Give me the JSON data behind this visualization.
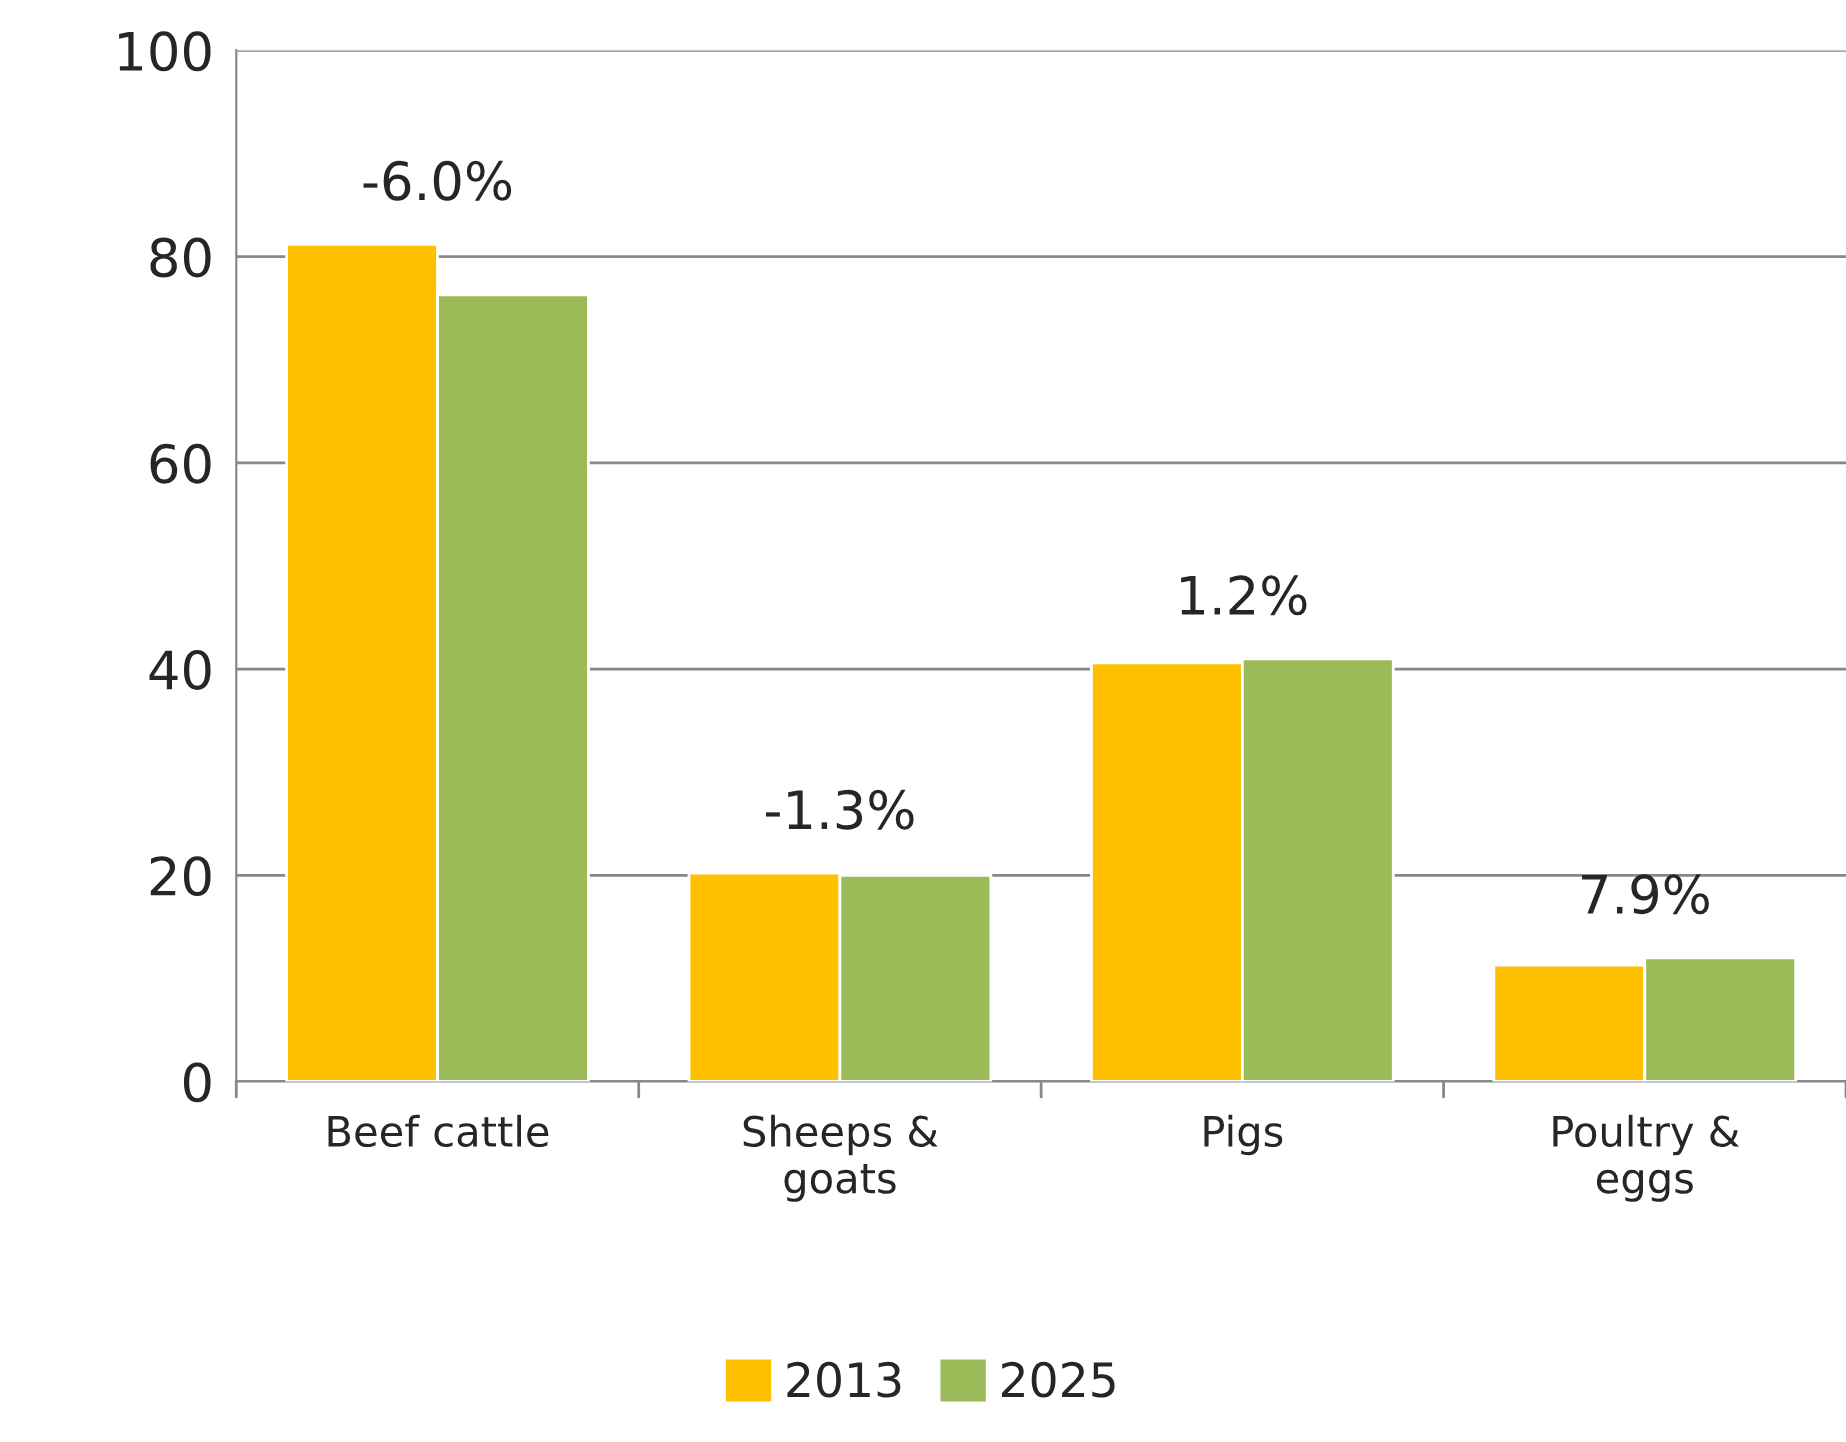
{
  "chart_data": {
    "type": "bar",
    "categories": [
      "Beef cattle",
      "Sheeps &\ngoats",
      "Pigs",
      "Poultry &\neggs"
    ],
    "series": [
      {
        "name": "2013",
        "color": "#ffc000",
        "values": [
          81.2,
          20.2,
          40.6,
          11.3
        ]
      },
      {
        "name": "2025",
        "color": "#9bbb59",
        "values": [
          76.3,
          20.0,
          41.0,
          12.0
        ]
      }
    ],
    "annotations": [
      {
        "text": "-6.0%",
        "x": "Beef cattle",
        "y": 81.2
      },
      {
        "text": "-1.3%",
        "x": "Sheeps &\ngoats",
        "y": 20.2
      },
      {
        "text": "1.2%",
        "x": "Pigs",
        "y": 41.0
      },
      {
        "text": "7.9%",
        "x": "Poultry &\neggs",
        "y": 12.0
      }
    ],
    "ylim": [
      0,
      100
    ],
    "yticks": [
      0,
      20,
      40,
      60,
      80,
      100
    ],
    "grid": "y",
    "legend": "bottom"
  }
}
